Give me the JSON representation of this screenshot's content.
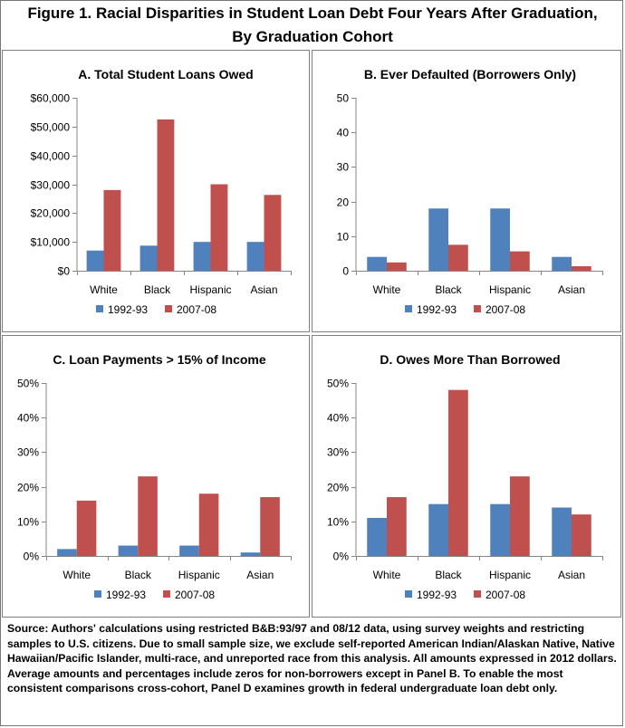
{
  "figure_title_line1": "Figure 1. Racial Disparities in Student Loan Debt Four Years After Graduation,",
  "figure_title_line2": "By Graduation Cohort",
  "colors": {
    "series_1992": "#4f81bd",
    "series_2007": "#c0504d",
    "axis": "#868686"
  },
  "chart_data": [
    {
      "type": "bar",
      "title": "A. Total Student Loans Owed",
      "categories": [
        "White",
        "Black",
        "Hispanic",
        "Asian"
      ],
      "series": [
        {
          "name": "1992-93",
          "values": [
            7000,
            8700,
            10000,
            10000
          ]
        },
        {
          "name": "2007-08",
          "values": [
            28000,
            52500,
            30000,
            26300
          ]
        }
      ],
      "ylim": [
        0,
        60000
      ],
      "yticks": [
        0,
        10000,
        20000,
        30000,
        40000,
        50000,
        60000
      ],
      "ytick_labels": [
        "$0",
        "$10,000",
        "$20,000",
        "$30,000",
        "$40,000",
        "$50,000",
        "$60,000"
      ],
      "legend": "bottom"
    },
    {
      "type": "bar",
      "title": "B. Ever Defaulted (Borrowers Only)",
      "categories": [
        "White",
        "Black",
        "Hispanic",
        "Asian"
      ],
      "series": [
        {
          "name": "1992-93",
          "values": [
            4,
            18,
            18,
            4
          ]
        },
        {
          "name": "2007-08",
          "values": [
            2.4,
            7.5,
            5.6,
            1.3
          ]
        }
      ],
      "ylim": [
        0,
        50
      ],
      "yticks": [
        0,
        10,
        20,
        30,
        40,
        50
      ],
      "ytick_labels": [
        "0",
        "10",
        "20",
        "30",
        "40",
        "50"
      ],
      "legend": "bottom"
    },
    {
      "type": "bar",
      "title": "C. Loan Payments > 15% of Income",
      "categories": [
        "White",
        "Black",
        "Hispanic",
        "Asian"
      ],
      "series": [
        {
          "name": "1992-93",
          "values": [
            2,
            3,
            3,
            1
          ]
        },
        {
          "name": "2007-08",
          "values": [
            16,
            23,
            18,
            17
          ]
        }
      ],
      "ylim": [
        0,
        50
      ],
      "yticks": [
        0,
        10,
        20,
        30,
        40,
        50
      ],
      "ytick_labels": [
        "0%",
        "10%",
        "20%",
        "30%",
        "40%",
        "50%"
      ],
      "legend": "bottom"
    },
    {
      "type": "bar",
      "title": "D. Owes More Than Borrowed",
      "categories": [
        "White",
        "Black",
        "Hispanic",
        "Asian"
      ],
      "series": [
        {
          "name": "1992-93",
          "values": [
            11,
            15,
            15,
            14
          ]
        },
        {
          "name": "2007-08",
          "values": [
            17,
            48,
            23,
            12
          ]
        }
      ],
      "ylim": [
        0,
        50
      ],
      "yticks": [
        0,
        10,
        20,
        30,
        40,
        50
      ],
      "ytick_labels": [
        "0%",
        "10%",
        "20%",
        "30%",
        "40%",
        "50%"
      ],
      "legend": "bottom"
    }
  ],
  "source_note": "Source: Authors' calculations using restricted B&B:93/97 and 08/12 data, using survey weights and restricting samples to U.S. citizens. Due to small sample size, we exclude self-reported American Indian/Alaskan Native, Native Hawaiian/Pacific Islander, multi-race, and unreported race from this analysis. All amounts expressed in 2012 dollars. Average amounts and percentages include zeros for non-borrowers except in Panel B. To enable the most consistent comparisons cross-cohort, Panel D examines growth in federal undergraduate loan debt only."
}
